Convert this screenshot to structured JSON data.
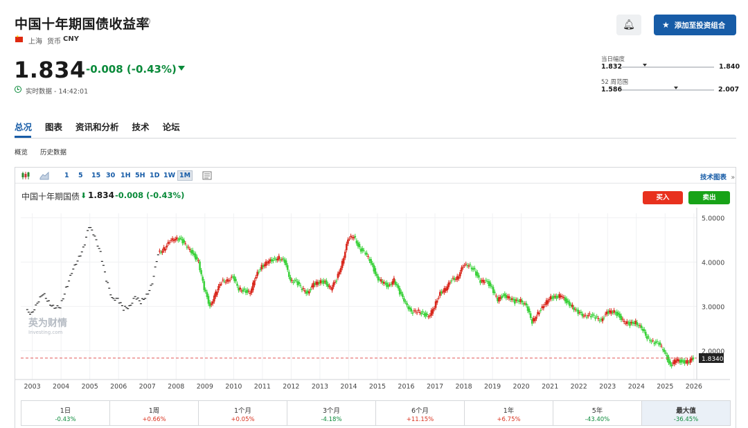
{
  "header": {
    "title": "中国十年期国债收益率",
    "info_icon": "info-icon",
    "exchange": "上海",
    "currency_label": "货币",
    "currency_code": "CNY",
    "price": "1.834",
    "change": "-0.008 (-0.43%)",
    "realtime_label": "实时数据 - 14:42:01",
    "bell_icon": "bell-plus-icon",
    "add_portfolio_label": "添加至投资组合",
    "accent_color": "#175ca7",
    "down_color": "#0a8a3a",
    "up_color": "#e8311e"
  },
  "ranges": {
    "day": {
      "label": "当日幅度",
      "low": "1.832",
      "high": "1.840",
      "marker_fraction": 0.25
    },
    "week52": {
      "label": "52 周范围",
      "low": "1.586",
      "high": "2.007",
      "marker_fraction": 0.59
    }
  },
  "tabs": [
    {
      "label": "总况",
      "active": true
    },
    {
      "label": "图表",
      "active": false
    },
    {
      "label": "资讯和分析",
      "active": false
    },
    {
      "label": "技术",
      "active": false
    },
    {
      "label": "论坛",
      "active": false
    }
  ],
  "subtabs": [
    "概览",
    "历史数据"
  ],
  "toolbar": {
    "intervals": [
      "1",
      "5",
      "15",
      "30",
      "1H",
      "5H",
      "1D",
      "1W",
      "1M"
    ],
    "active_interval": "1M",
    "tech_chart_label": "技术图表",
    "tech_chart_arrow": "»"
  },
  "chart_header": {
    "name": "中国十年期国债",
    "price": "1.834",
    "change": "-0.008 (-0.43%)",
    "buy_label": "买入",
    "sell_label": "卖出"
  },
  "watermark": {
    "cn": "英为财情",
    "en": "Investing.com"
  },
  "chart_data": {
    "type": "candlestick",
    "title": "",
    "xlabel": "",
    "ylabel": "",
    "x_ticks": [
      "2003",
      "2004",
      "2005",
      "2006",
      "2007",
      "2008",
      "2009",
      "2010",
      "2011",
      "2012",
      "2013",
      "2014",
      "2015",
      "2016",
      "2017",
      "2018",
      "2019",
      "2020",
      "2021",
      "2022",
      "2023",
      "2024",
      "2025",
      "2026"
    ],
    "y_ticks": [
      "5.0000",
      "4.0000",
      "3.0000",
      "2.0000"
    ],
    "ylim": [
      1.35,
      5.1
    ],
    "xlim": [
      2002.6,
      2026.1
    ],
    "current_value": 1.834,
    "current_label": "1.8340",
    "series": [
      {
        "x": [
          2002.9,
          2003.1,
          2003.3,
          2003.5,
          2003.7,
          2003.9,
          2004.1,
          2004.3,
          2004.5,
          2004.7,
          2004.9,
          2005.1,
          2005.3,
          2005.5,
          2005.7,
          2005.9,
          2006.1,
          2006.3,
          2006.5,
          2006.7,
          2006.9,
          2007.1,
          2007.3,
          2007.5,
          2007.7,
          2007.9,
          2008.1,
          2008.3,
          2008.5,
          2008.7,
          2008.9,
          2009.1,
          2009.3,
          2009.5,
          2009.7,
          2009.9,
          2010.1,
          2010.3,
          2010.5,
          2010.7,
          2010.9,
          2011.1,
          2011.3,
          2011.5,
          2011.7,
          2011.9,
          2012.1,
          2012.3,
          2012.5,
          2012.7,
          2012.9,
          2013.1,
          2013.3,
          2013.5,
          2013.7,
          2013.9,
          2014.1,
          2014.3,
          2014.5,
          2014.7,
          2014.9,
          2015.1,
          2015.3,
          2015.5,
          2015.7,
          2015.9,
          2016.1,
          2016.3,
          2016.5,
          2016.7,
          2016.9,
          2017.1,
          2017.3,
          2017.5,
          2017.7,
          2017.9,
          2018.1,
          2018.3,
          2018.5,
          2018.7,
          2018.9,
          2019.1,
          2019.3,
          2019.5,
          2019.7,
          2019.9,
          2020.1,
          2020.3,
          2020.5,
          2020.7,
          2020.9,
          2021.1,
          2021.3,
          2021.5,
          2021.7,
          2021.9,
          2022.1,
          2022.3,
          2022.5,
          2022.7,
          2022.9,
          2023.1,
          2023.3,
          2023.5,
          2023.7,
          2023.9,
          2024.1,
          2024.3,
          2024.5,
          2024.7,
          2024.9,
          2025.1,
          2025.3,
          2025.5,
          2025.7,
          2025.9
        ],
        "close": [
          2.85,
          3.05,
          3.3,
          3.1,
          2.95,
          3.0,
          3.4,
          3.75,
          4.05,
          4.3,
          4.8,
          4.6,
          4.2,
          3.6,
          3.2,
          3.15,
          2.95,
          3.0,
          3.2,
          3.1,
          3.25,
          3.5,
          4.2,
          4.3,
          4.45,
          4.55,
          4.5,
          4.35,
          4.2,
          4.0,
          3.4,
          3.0,
          3.3,
          3.55,
          3.6,
          3.65,
          3.4,
          3.35,
          3.3,
          3.7,
          3.9,
          4.0,
          4.05,
          4.1,
          4.0,
          3.6,
          3.55,
          3.4,
          3.3,
          3.5,
          3.55,
          3.55,
          3.4,
          3.6,
          4.0,
          4.5,
          4.6,
          4.3,
          4.2,
          4.0,
          3.65,
          3.55,
          3.45,
          3.6,
          3.3,
          3.1,
          2.85,
          2.9,
          2.85,
          2.75,
          3.0,
          3.3,
          3.4,
          3.6,
          3.65,
          3.9,
          3.95,
          3.8,
          3.55,
          3.6,
          3.4,
          3.15,
          3.25,
          3.2,
          3.1,
          3.15,
          3.0,
          2.65,
          2.85,
          3.0,
          3.2,
          3.2,
          3.25,
          3.1,
          3.0,
          2.85,
          2.8,
          2.8,
          2.75,
          2.7,
          2.85,
          2.9,
          2.8,
          2.65,
          2.6,
          2.65,
          2.5,
          2.3,
          2.2,
          2.15,
          2.0,
          1.65,
          1.8,
          1.75,
          1.75,
          1.83
        ]
      }
    ]
  },
  "performance": [
    {
      "label": "1日",
      "value": "-0.43%",
      "dir": "neg",
      "selected": false
    },
    {
      "label": "1周",
      "value": "+0.66%",
      "dir": "pos",
      "selected": false
    },
    {
      "label": "1个月",
      "value": "+0.05%",
      "dir": "pos",
      "selected": false
    },
    {
      "label": "3个月",
      "value": "-4.18%",
      "dir": "neg",
      "selected": false
    },
    {
      "label": "6个月",
      "value": "+11.15%",
      "dir": "pos",
      "selected": false
    },
    {
      "label": "1年",
      "value": "+6.75%",
      "dir": "pos",
      "selected": false
    },
    {
      "label": "5年",
      "value": "-43.40%",
      "dir": "neg",
      "selected": false
    },
    {
      "label": "最大值",
      "value": "-36.45%",
      "dir": "neg",
      "selected": true
    }
  ]
}
